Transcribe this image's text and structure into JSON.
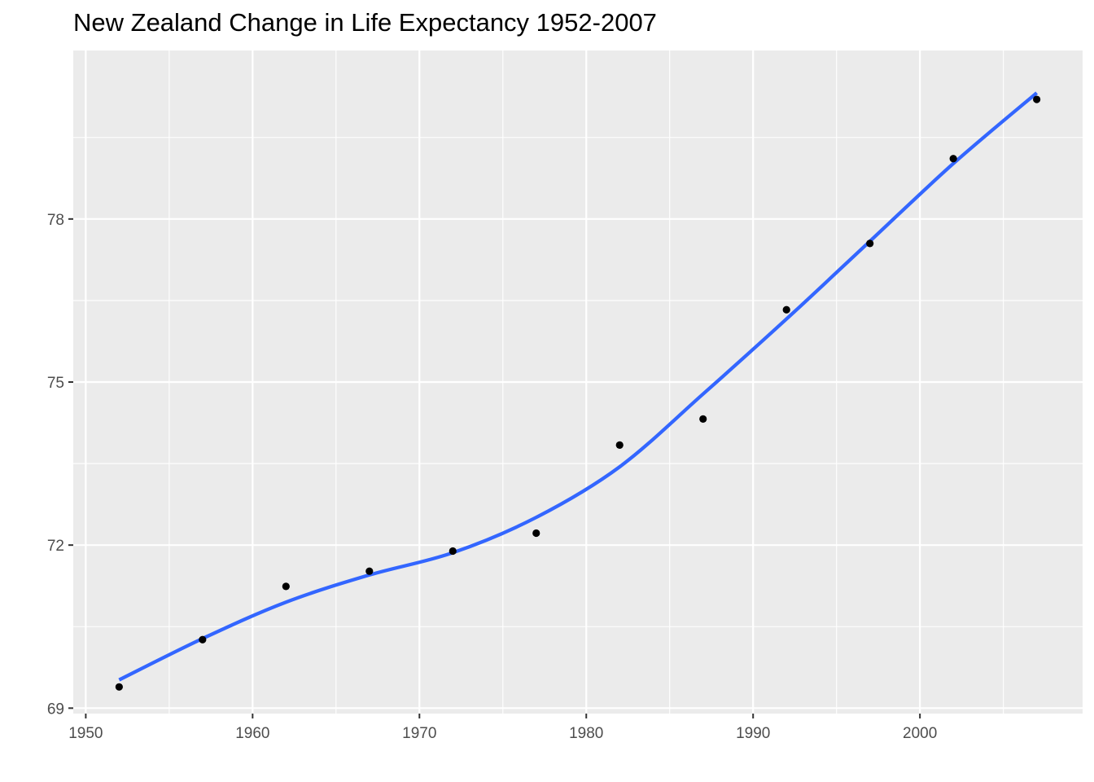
{
  "chart_data": {
    "type": "scatter",
    "title": "New Zealand Change in Life Expectancy 1952-2007",
    "xlabel": "",
    "ylabel": "",
    "xlim": [
      1949.25,
      2009.75
    ],
    "ylim": [
      68.9,
      81.1
    ],
    "grid": true,
    "x_ticks": [
      1950,
      1960,
      1970,
      1980,
      1990,
      2000
    ],
    "x_tick_labels": [
      "1950",
      "1960",
      "1970",
      "1980",
      "1990",
      "2000"
    ],
    "y_ticks": [
      69,
      72,
      75,
      78
    ],
    "y_tick_labels": [
      "69",
      "72",
      "75",
      "78"
    ],
    "points": {
      "x": [
        1952,
        1957,
        1962,
        1967,
        1972,
        1977,
        1982,
        1987,
        1992,
        1997,
        2002,
        2007
      ],
      "y": [
        69.39,
        70.26,
        71.24,
        71.52,
        71.89,
        72.22,
        73.84,
        74.32,
        76.33,
        77.55,
        79.11,
        80.2
      ]
    },
    "smooth": {
      "x": [
        1952,
        1957,
        1962,
        1967,
        1972,
        1977,
        1982,
        1987,
        1992,
        1997,
        2002,
        2007
      ],
      "y": [
        69.52,
        70.28,
        70.95,
        71.45,
        71.86,
        72.51,
        73.44,
        74.78,
        76.16,
        77.59,
        79.02,
        80.32
      ]
    },
    "colors": {
      "panel": "#ebebeb",
      "grid_major": "#ffffff",
      "smooth_line": "#3366ff",
      "points": "#000000",
      "tick_text": "#4d4d4d",
      "tick_mark": "#333333"
    }
  }
}
